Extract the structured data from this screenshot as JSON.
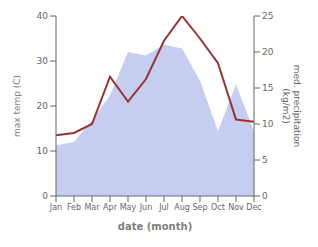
{
  "chart_data": {
    "type": "line",
    "categories": [
      "Jan",
      "Feb",
      "Mar",
      "Apr",
      "May",
      "Jun",
      "Jul",
      "Aug",
      "Sep",
      "Oct",
      "Nov",
      "Dec"
    ],
    "series": [
      {
        "type": "area",
        "axis": "y2",
        "color": "#c5cdf0",
        "values": [
          7.0,
          7.5,
          10.5,
          14.0,
          20.0,
          19.5,
          21.0,
          20.5,
          16.0,
          9.0,
          15.5,
          9.0
        ]
      },
      {
        "type": "line",
        "color": "#993333",
        "values": [
          13.5,
          14.0,
          16.0,
          26.5,
          21.0,
          26.0,
          34.5,
          40.0,
          35.0,
          29.5,
          17.0,
          16.5
        ]
      }
    ],
    "xlabel": "date (month)",
    "ylabel": "max temp (C)",
    "y2label": "med. precipitation\n(kg/m2)",
    "ylim": [
      0,
      40
    ],
    "yticks": [
      0,
      10,
      20,
      30,
      40
    ],
    "y2lim": [
      0,
      25
    ],
    "y2ticks": [
      0,
      5,
      10,
      15,
      20,
      25
    ],
    "grid": false
  }
}
